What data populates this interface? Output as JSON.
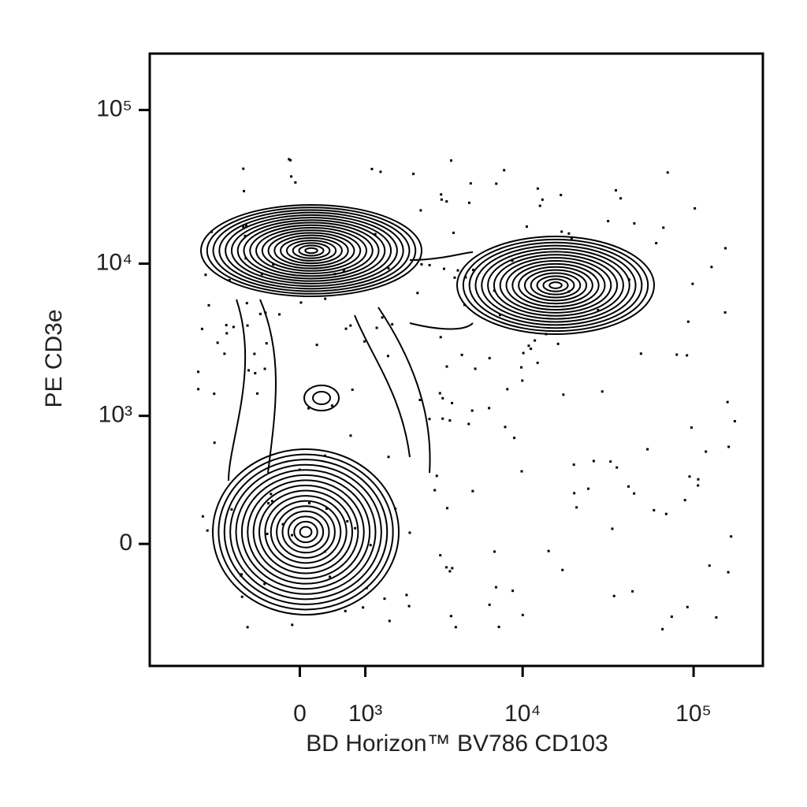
{
  "chart_data": {
    "type": "contour",
    "xlabel": "BD Horizon™ BV786 CD103",
    "ylabel": "PE CD3e",
    "xscale": "biexponential",
    "yscale": "biexponential",
    "xlim": [
      -3700,
      254000
    ],
    "ylim": [
      -910,
      233000
    ],
    "xticks": [
      0,
      {
        "value": 1000,
        "label": "10³"
      },
      {
        "value": 10000,
        "label": "10⁴"
      },
      {
        "value": 100000,
        "label": "10⁵"
      }
    ],
    "yticks": [
      0,
      {
        "value": 1000,
        "label": "10³"
      },
      {
        "value": 10000,
        "label": "10⁴"
      },
      {
        "value": 100000,
        "label": "10⁵"
      }
    ],
    "color": "#000000"
  }
}
